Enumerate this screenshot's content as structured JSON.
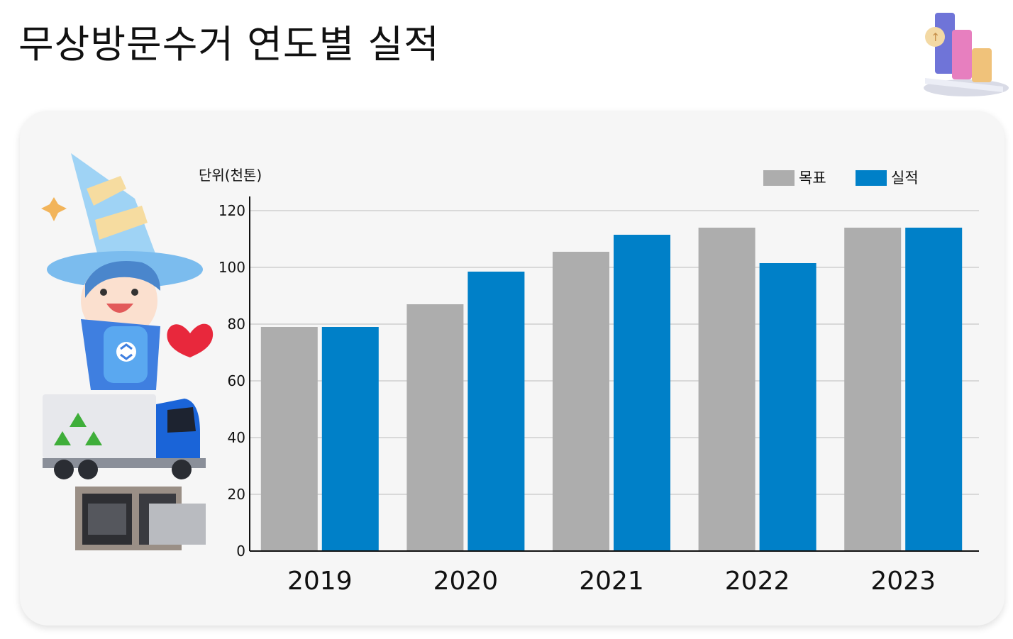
{
  "header": {
    "title": "무상방문수거 연도별 실적"
  },
  "chart_data": {
    "type": "bar",
    "unit_label": "단위(천톤)",
    "categories": [
      "2019",
      "2020",
      "2021",
      "2022",
      "2023"
    ],
    "series": [
      {
        "name": "목표",
        "color": "#adadad",
        "values": [
          79,
          87,
          105.5,
          114,
          114
        ]
      },
      {
        "name": "실적",
        "color": "#0080c8",
        "values": [
          79,
          98.5,
          111.5,
          101.5,
          114
        ]
      }
    ],
    "ylim": [
      0,
      120
    ],
    "yticks": [
      "0",
      "20",
      "40",
      "60",
      "80",
      "100",
      "120"
    ],
    "grid": true,
    "legend_position": "top-right"
  },
  "decorations": {
    "top_right_icon": "bar-chart-3d-icon",
    "left_illustration": "wizard-mascot-recycling-truck-appliances"
  }
}
